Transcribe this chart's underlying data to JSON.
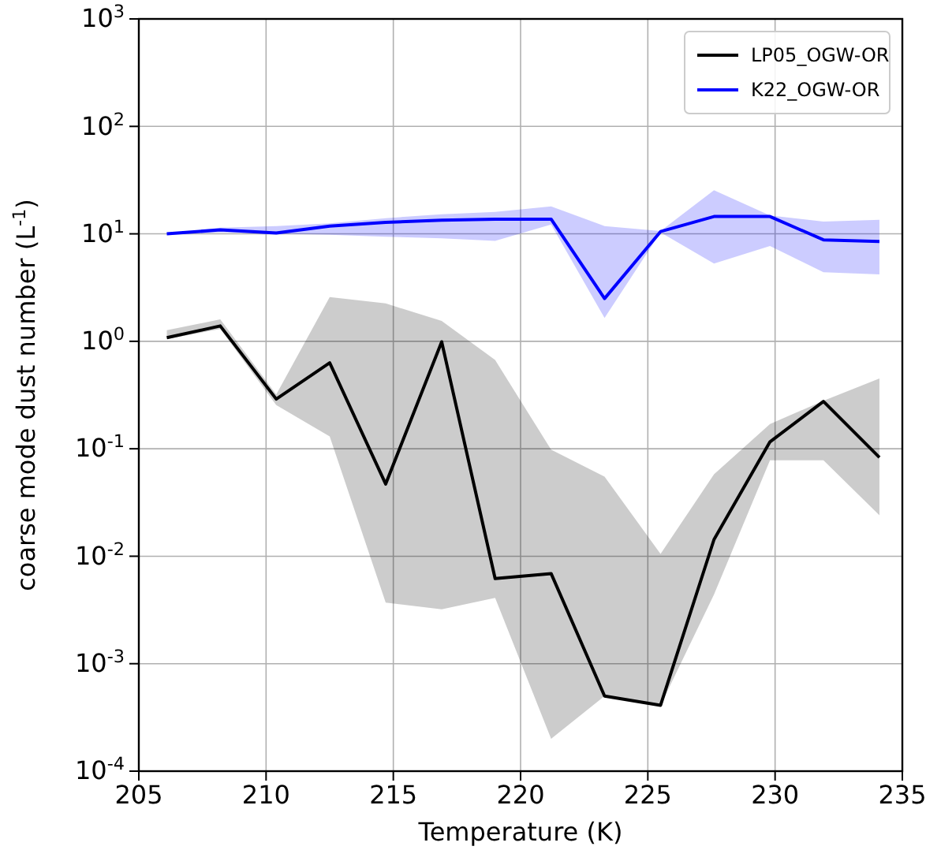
{
  "chart_data": {
    "type": "line",
    "xlabel": "Temperature (K)",
    "ylabel": "coarse mode dust number (L$^{-1}$)",
    "x": [
      206.1,
      208.2,
      210.4,
      212.5,
      214.7,
      216.9,
      219.0,
      221.2,
      223.3,
      225.5,
      227.6,
      229.8,
      231.9,
      234.1
    ],
    "series": [
      {
        "name": "LP05_OGW-OR",
        "color": "#000000",
        "values": [
          1.08,
          1.39,
          0.29,
          0.63,
          0.047,
          0.99,
          0.0062,
          0.0069,
          0.0005,
          0.00041,
          0.0143,
          0.116,
          0.276,
          0.083
        ],
        "upper": [
          1.27,
          1.6,
          0.32,
          2.58,
          2.25,
          1.55,
          0.67,
          0.098,
          0.055,
          0.0105,
          0.058,
          0.17,
          0.28,
          0.45
        ],
        "lower": [
          1.05,
          1.3,
          0.255,
          0.13,
          0.0037,
          0.0032,
          0.0041,
          0.0002,
          0.0005,
          0.00041,
          0.0044,
          0.078,
          0.078,
          0.024
        ]
      },
      {
        "name": "K22_OGW-OR",
        "color": "#0000ff",
        "values": [
          10,
          10.9,
          10.2,
          11.8,
          12.8,
          13.4,
          13.7,
          13.7,
          2.5,
          10.5,
          14.5,
          14.5,
          8.8,
          8.5
        ],
        "upper": [
          10,
          11.4,
          11.8,
          12.5,
          14,
          15.2,
          16,
          18,
          11.8,
          10.6,
          25.5,
          14.8,
          13,
          13.5
        ],
        "lower": [
          9.8,
          10.3,
          10,
          9.8,
          9.4,
          9.1,
          8.6,
          12.2,
          1.65,
          10.3,
          5.3,
          7.7,
          4.4,
          4.2
        ]
      }
    ],
    "xlim": [
      205,
      235
    ],
    "xticks": [
      205,
      210,
      215,
      220,
      225,
      230,
      235
    ],
    "ylim": [
      0.0001,
      1000
    ],
    "yticks": [
      {
        "value": 0.0001,
        "label": "10$^{-4}$"
      },
      {
        "value": 0.001,
        "label": "10$^{-3}$"
      },
      {
        "value": 0.01,
        "label": "10$^{-2}$"
      },
      {
        "value": 0.1,
        "label": "10$^{-1}$"
      },
      {
        "value": 1,
        "label": "10$^{0}$"
      },
      {
        "value": 10,
        "label": "10$^{1}$"
      },
      {
        "value": 100,
        "label": "10$^{2}$"
      },
      {
        "value": 1000,
        "label": "10$^{3}$"
      }
    ],
    "log": "y",
    "grid": true,
    "legend": "top right",
    "line_style": "solid",
    "marker": "none"
  }
}
